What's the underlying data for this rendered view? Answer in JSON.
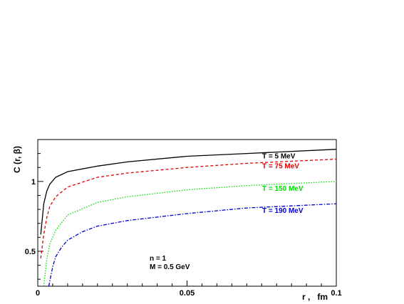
{
  "chart_data": {
    "type": "line",
    "title": "",
    "xlabel": "r ,   fm",
    "ylabel": "C (r, β)",
    "xlim": [
      0,
      0.1
    ],
    "ylim": [
      0.25,
      1.3
    ],
    "x_ticks": [
      {
        "value": 0,
        "label": "0"
      },
      {
        "value": 0.05,
        "label": "0.05"
      },
      {
        "value": 0.1,
        "label": "0.1"
      }
    ],
    "y_ticks": [
      {
        "value": 0.5,
        "label": "0.5"
      },
      {
        "value": 1.0,
        "label": "1"
      }
    ],
    "grid": false,
    "series": [
      {
        "name": "T = 5 MeV",
        "color": "#000000",
        "style": "solid",
        "x": [
          0.001,
          0.002,
          0.003,
          0.004,
          0.006,
          0.01,
          0.02,
          0.03,
          0.05,
          0.07,
          0.1
        ],
        "y": [
          0.62,
          0.84,
          0.93,
          0.98,
          1.03,
          1.07,
          1.11,
          1.14,
          1.18,
          1.2,
          1.23
        ]
      },
      {
        "name": "T = 75 MeV",
        "color": "#e00000",
        "style": "dashed",
        "x": [
          0.001,
          0.002,
          0.003,
          0.004,
          0.006,
          0.01,
          0.02,
          0.03,
          0.05,
          0.07,
          0.1
        ],
        "y": [
          0.45,
          0.62,
          0.74,
          0.82,
          0.89,
          0.96,
          1.03,
          1.06,
          1.1,
          1.13,
          1.16
        ]
      },
      {
        "name": "T = 150 MeV",
        "color": "#00dd00",
        "style": "dotted",
        "x": [
          0.002,
          0.003,
          0.004,
          0.006,
          0.01,
          0.02,
          0.03,
          0.05,
          0.07,
          0.1
        ],
        "y": [
          0.25,
          0.44,
          0.55,
          0.65,
          0.76,
          0.85,
          0.89,
          0.94,
          0.97,
          1.0
        ]
      },
      {
        "name": "T = 190 MeV",
        "color": "#0000cc",
        "style": "dashdot",
        "x": [
          0.0037,
          0.005,
          0.006,
          0.008,
          0.01,
          0.015,
          0.02,
          0.03,
          0.05,
          0.07,
          0.1
        ],
        "y": [
          0.25,
          0.39,
          0.46,
          0.53,
          0.58,
          0.64,
          0.68,
          0.72,
          0.77,
          0.81,
          0.84
        ]
      }
    ],
    "annotations": [
      "n = 1",
      "M = 0.5 GeV"
    ],
    "legend_placement": "inline at right end of each curve"
  }
}
